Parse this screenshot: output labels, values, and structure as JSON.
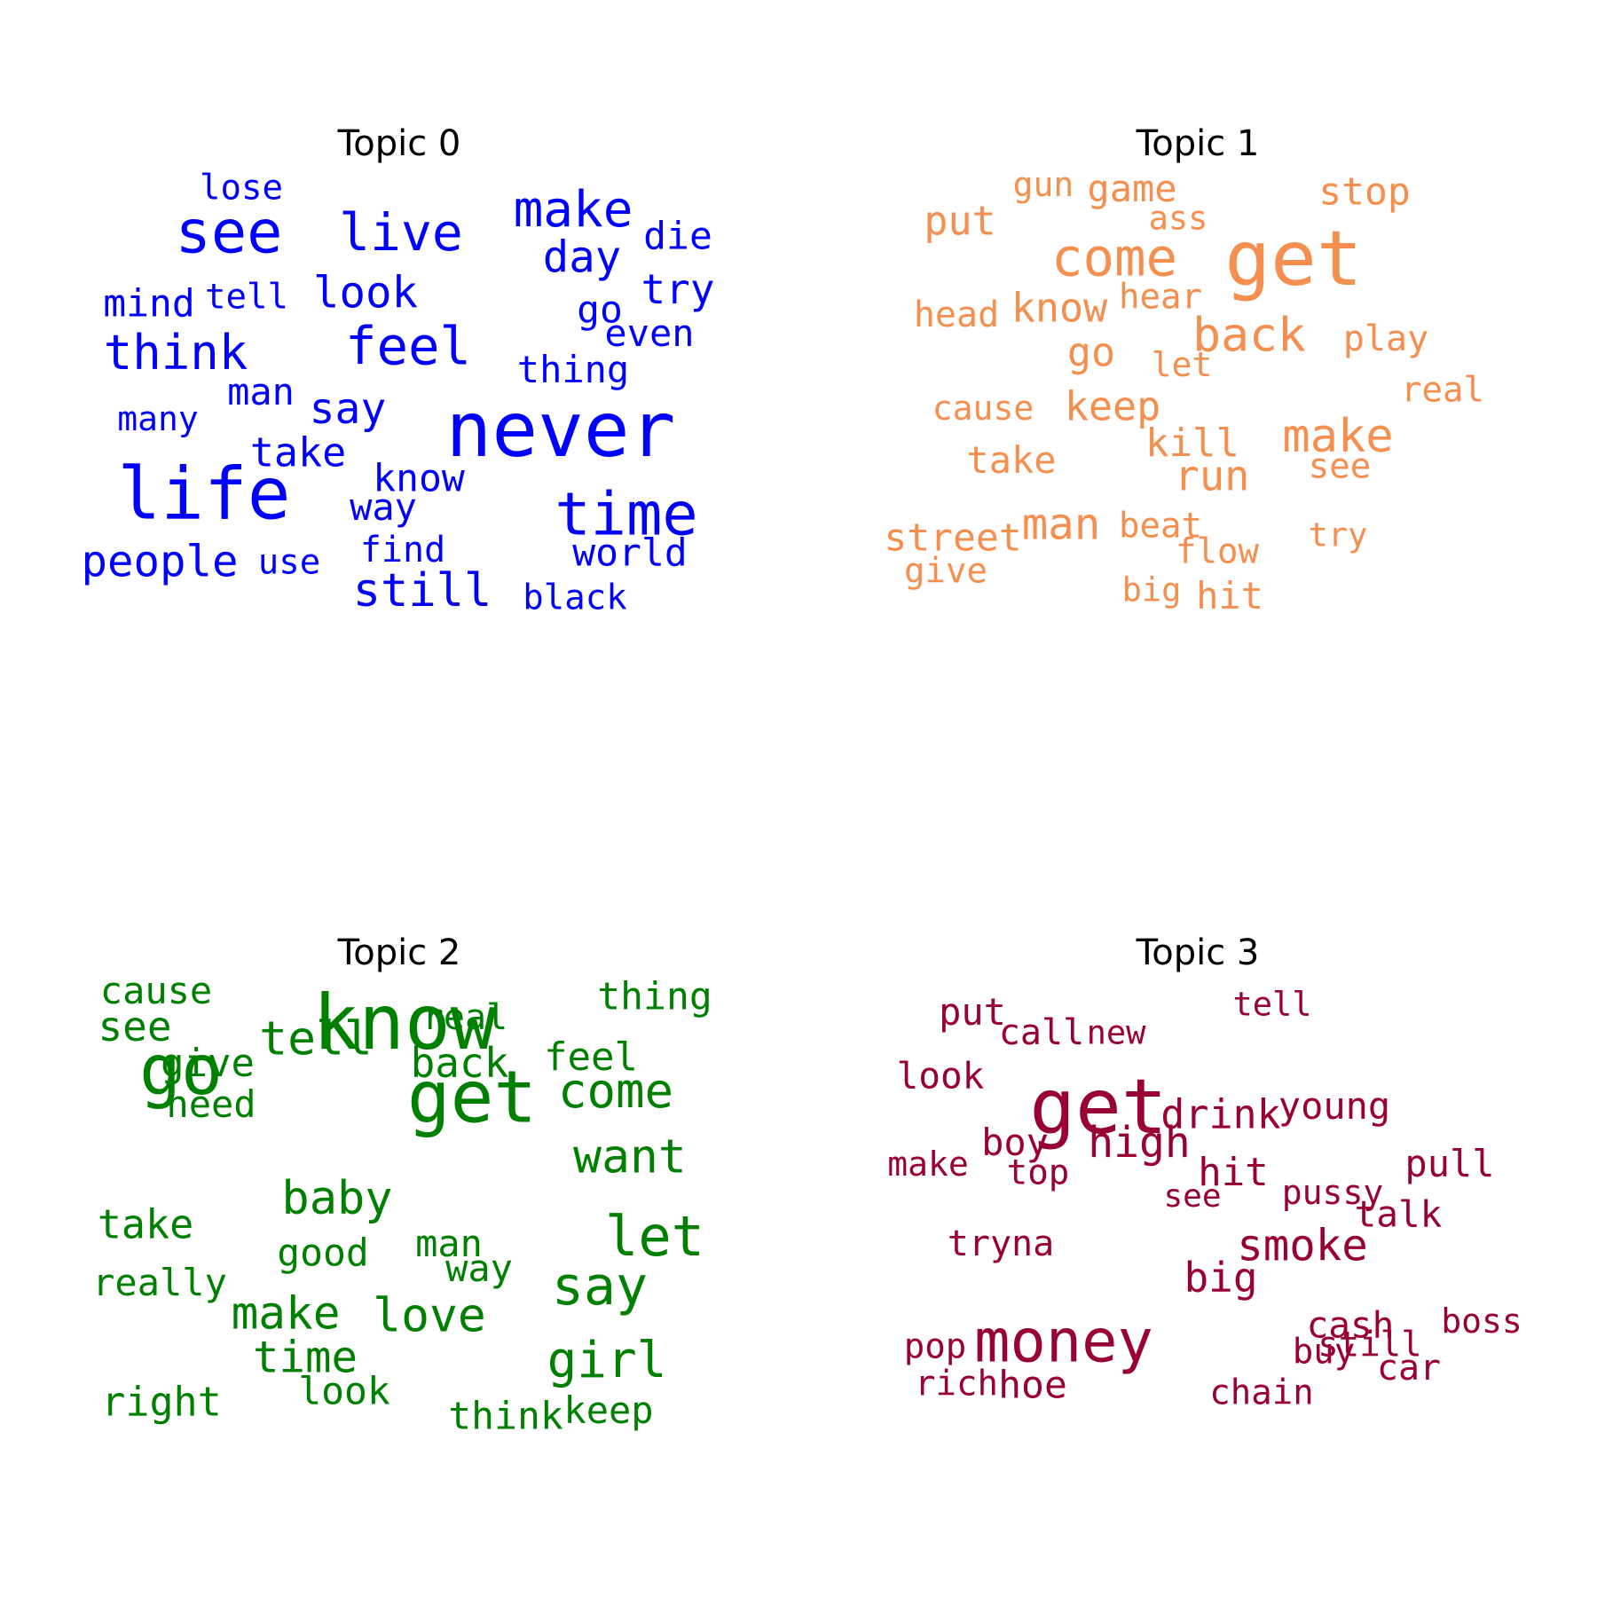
{
  "chart_data": [
    {
      "type": "wordcloud",
      "title": "Topic 0",
      "color": "#0000ff",
      "words": [
        {
          "text": "never",
          "weight": 1.0
        },
        {
          "text": "life",
          "weight": 0.95
        },
        {
          "text": "time",
          "weight": 0.8
        },
        {
          "text": "see",
          "weight": 0.8
        },
        {
          "text": "feel",
          "weight": 0.72
        },
        {
          "text": "live",
          "weight": 0.7
        },
        {
          "text": "make",
          "weight": 0.68
        },
        {
          "text": "think",
          "weight": 0.66
        },
        {
          "text": "still",
          "weight": 0.63
        },
        {
          "text": "look",
          "weight": 0.6
        },
        {
          "text": "day",
          "weight": 0.6
        },
        {
          "text": "people",
          "weight": 0.6
        },
        {
          "text": "say",
          "weight": 0.58
        },
        {
          "text": "try",
          "weight": 0.56
        },
        {
          "text": "take",
          "weight": 0.55
        },
        {
          "text": "world",
          "weight": 0.52
        },
        {
          "text": "mind",
          "weight": 0.52
        },
        {
          "text": "know",
          "weight": 0.52
        },
        {
          "text": "go",
          "weight": 0.52
        },
        {
          "text": "die",
          "weight": 0.52
        },
        {
          "text": "man",
          "weight": 0.5
        },
        {
          "text": "even",
          "weight": 0.5
        },
        {
          "text": "way",
          "weight": 0.5
        },
        {
          "text": "thing",
          "weight": 0.5
        },
        {
          "text": "find",
          "weight": 0.48
        },
        {
          "text": "tell",
          "weight": 0.47
        },
        {
          "text": "lose",
          "weight": 0.47
        },
        {
          "text": "black",
          "weight": 0.46
        },
        {
          "text": "use",
          "weight": 0.46
        },
        {
          "text": "many",
          "weight": 0.45
        }
      ]
    },
    {
      "type": "wordcloud",
      "title": "Topic 1",
      "color": "#f58f4f",
      "words": [
        {
          "text": "get",
          "weight": 1.0
        },
        {
          "text": "come",
          "weight": 0.72
        },
        {
          "text": "back",
          "weight": 0.65
        },
        {
          "text": "make",
          "weight": 0.63
        },
        {
          "text": "man",
          "weight": 0.6
        },
        {
          "text": "run",
          "weight": 0.57
        },
        {
          "text": "know",
          "weight": 0.55
        },
        {
          "text": "go",
          "weight": 0.55
        },
        {
          "text": "put",
          "weight": 0.55
        },
        {
          "text": "keep",
          "weight": 0.54
        },
        {
          "text": "kill",
          "weight": 0.53
        },
        {
          "text": "stop",
          "weight": 0.52
        },
        {
          "text": "street",
          "weight": 0.52
        },
        {
          "text": "game",
          "weight": 0.5
        },
        {
          "text": "take",
          "weight": 0.5
        },
        {
          "text": "hit",
          "weight": 0.5
        },
        {
          "text": "play",
          "weight": 0.48
        },
        {
          "text": "head",
          "weight": 0.48
        },
        {
          "text": "beat",
          "weight": 0.47
        },
        {
          "text": "give",
          "weight": 0.47
        },
        {
          "text": "hear",
          "weight": 0.46
        },
        {
          "text": "see",
          "weight": 0.46
        },
        {
          "text": "real",
          "weight": 0.46
        },
        {
          "text": "flow",
          "weight": 0.46
        },
        {
          "text": "cause",
          "weight": 0.45
        },
        {
          "text": "let",
          "weight": 0.45
        },
        {
          "text": "gun",
          "weight": 0.45
        },
        {
          "text": "try",
          "weight": 0.44
        },
        {
          "text": "big",
          "weight": 0.44
        },
        {
          "text": "ass",
          "weight": 0.43
        }
      ]
    },
    {
      "type": "wordcloud",
      "title": "Topic 2",
      "color": "#008000",
      "words": [
        {
          "text": "know",
          "weight": 1.0
        },
        {
          "text": "get",
          "weight": 0.95
        },
        {
          "text": "go",
          "weight": 0.92
        },
        {
          "text": "let",
          "weight": 0.75
        },
        {
          "text": "say",
          "weight": 0.73
        },
        {
          "text": "girl",
          "weight": 0.68
        },
        {
          "text": "come",
          "weight": 0.66
        },
        {
          "text": "tell",
          "weight": 0.65
        },
        {
          "text": "love",
          "weight": 0.65
        },
        {
          "text": "want",
          "weight": 0.64
        },
        {
          "text": "baby",
          "weight": 0.63
        },
        {
          "text": "make",
          "weight": 0.62
        },
        {
          "text": "time",
          "weight": 0.6
        },
        {
          "text": "see",
          "weight": 0.56
        },
        {
          "text": "back",
          "weight": 0.56
        },
        {
          "text": "take",
          "weight": 0.54
        },
        {
          "text": "right",
          "weight": 0.54
        },
        {
          "text": "feel",
          "weight": 0.53
        },
        {
          "text": "give",
          "weight": 0.53
        },
        {
          "text": "thing",
          "weight": 0.52
        },
        {
          "text": "good",
          "weight": 0.52
        },
        {
          "text": "look",
          "weight": 0.52
        },
        {
          "text": "think",
          "weight": 0.52
        },
        {
          "text": "keep",
          "weight": 0.51
        },
        {
          "text": "cause",
          "weight": 0.5
        },
        {
          "text": "need",
          "weight": 0.5
        },
        {
          "text": "really",
          "weight": 0.5
        },
        {
          "text": "man",
          "weight": 0.5
        },
        {
          "text": "way",
          "weight": 0.5
        },
        {
          "text": "real",
          "weight": 0.48
        }
      ]
    },
    {
      "type": "wordcloud",
      "title": "Topic 3",
      "color": "#990033",
      "words": [
        {
          "text": "get",
          "weight": 1.0
        },
        {
          "text": "money",
          "weight": 0.8
        },
        {
          "text": "smoke",
          "weight": 0.6
        },
        {
          "text": "high",
          "weight": 0.58
        },
        {
          "text": "big",
          "weight": 0.56
        },
        {
          "text": "drink",
          "weight": 0.54
        },
        {
          "text": "hit",
          "weight": 0.53
        },
        {
          "text": "hoe",
          "weight": 0.52
        },
        {
          "text": "young",
          "weight": 0.5
        },
        {
          "text": "pull",
          "weight": 0.5
        },
        {
          "text": "put",
          "weight": 0.5
        },
        {
          "text": "boy",
          "weight": 0.5
        },
        {
          "text": "look",
          "weight": 0.49
        },
        {
          "text": "talk",
          "weight": 0.49
        },
        {
          "text": "cash",
          "weight": 0.49
        },
        {
          "text": "tryna",
          "weight": 0.48
        },
        {
          "text": "call",
          "weight": 0.48
        },
        {
          "text": "car",
          "weight": 0.48
        },
        {
          "text": "chain",
          "weight": 0.47
        },
        {
          "text": "top",
          "weight": 0.47
        },
        {
          "text": "buy",
          "weight": 0.47
        },
        {
          "text": "rich",
          "weight": 0.47
        },
        {
          "text": "pop",
          "weight": 0.47
        },
        {
          "text": "still",
          "weight": 0.46
        },
        {
          "text": "pussy",
          "weight": 0.45
        },
        {
          "text": "make",
          "weight": 0.45
        },
        {
          "text": "boss",
          "weight": 0.45
        },
        {
          "text": "tell",
          "weight": 0.44
        },
        {
          "text": "new",
          "weight": 0.43
        },
        {
          "text": "see",
          "weight": 0.42
        }
      ]
    }
  ]
}
